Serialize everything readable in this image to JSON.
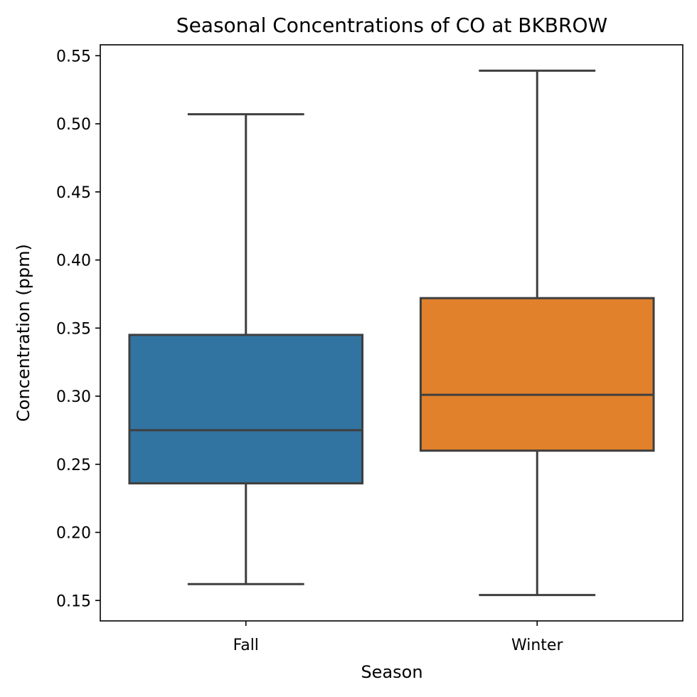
{
  "chart_data": {
    "type": "box",
    "title": "Seasonal Concentrations of CO at BKBROW",
    "xlabel": "Season",
    "ylabel": "Concentration (ppm)",
    "categories": [
      "Fall",
      "Winter"
    ],
    "ylim": [
      0.135,
      0.558
    ],
    "yticks": [
      0.15,
      0.2,
      0.25,
      0.3,
      0.35,
      0.4,
      0.45,
      0.5,
      0.55
    ],
    "ytick_labels": [
      "0.15",
      "0.20",
      "0.25",
      "0.30",
      "0.35",
      "0.40",
      "0.45",
      "0.50",
      "0.55"
    ],
    "grid": false,
    "boxes": [
      {
        "category": "Fall",
        "whisker_low": 0.162,
        "q1": 0.236,
        "median": 0.275,
        "q3": 0.345,
        "whisker_high": 0.507,
        "color": "#3274a1"
      },
      {
        "category": "Winter",
        "whisker_low": 0.154,
        "q1": 0.26,
        "median": 0.301,
        "q3": 0.372,
        "whisker_high": 0.539,
        "color": "#e1812c"
      }
    ],
    "line_color": "#3f3f3f"
  }
}
